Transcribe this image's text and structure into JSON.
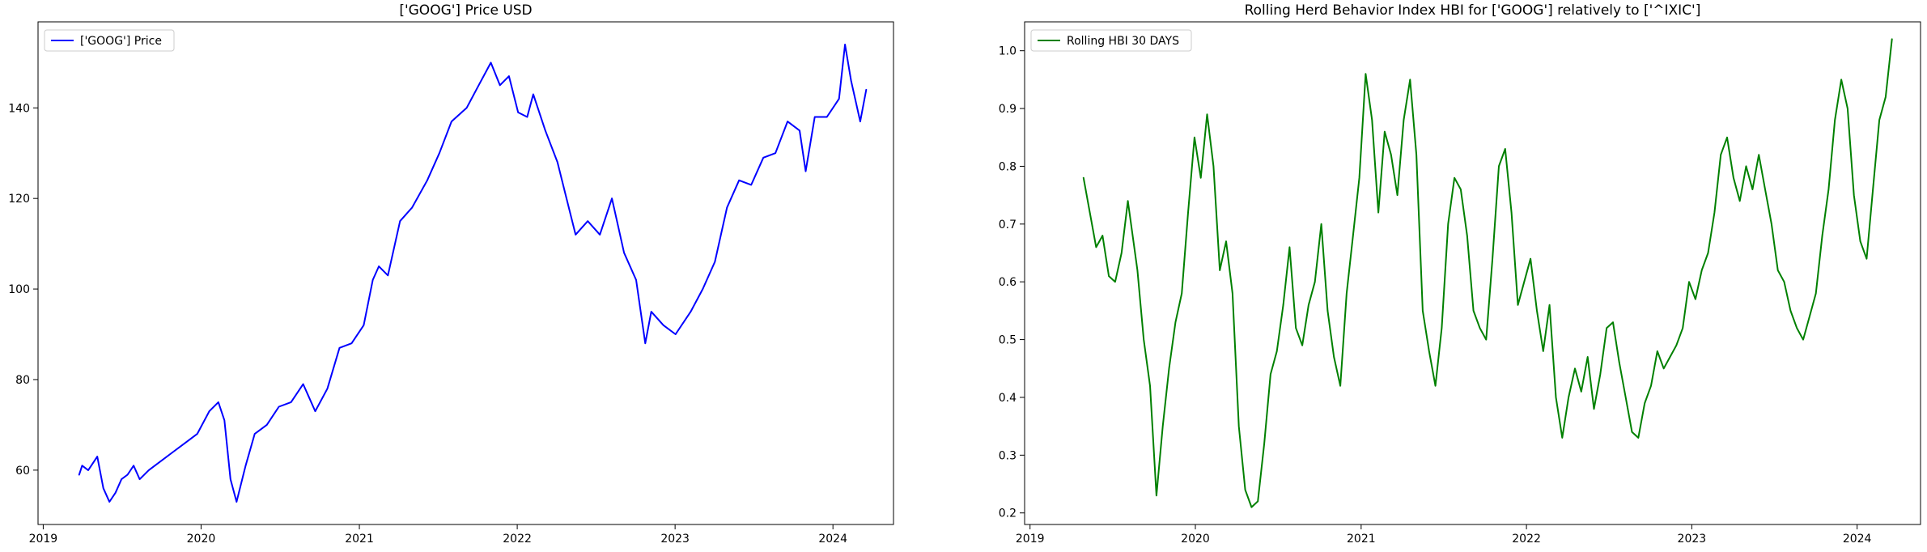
{
  "chart_data": [
    {
      "type": "line",
      "title": "['GOOG'] Price USD",
      "xlabel": "",
      "ylabel": "",
      "x_ticks": [
        "2019",
        "2020",
        "2021",
        "2022",
        "2023",
        "2024"
      ],
      "y_ticks": [
        "60",
        "80",
        "100",
        "120",
        "140"
      ],
      "xlim": [
        "2018-12-20",
        "2024-05-20"
      ],
      "ylim": [
        48,
        159
      ],
      "grid": false,
      "legend_position": "upper-left",
      "series": [
        {
          "name": "['GOOG'] Price",
          "color": "#0000ff",
          "x": [
            "2019-03-25",
            "2019-04-01",
            "2019-04-15",
            "2019-04-29",
            "2019-05-06",
            "2019-05-20",
            "2019-06-03",
            "2019-06-17",
            "2019-07-01",
            "2019-07-15",
            "2019-07-29",
            "2019-08-12",
            "2019-09-02",
            "2019-09-30",
            "2019-10-28",
            "2019-11-25",
            "2019-12-23",
            "2020-01-20",
            "2020-02-10",
            "2020-02-24",
            "2020-03-09",
            "2020-03-23",
            "2020-04-13",
            "2020-05-04",
            "2020-06-01",
            "2020-06-29",
            "2020-07-27",
            "2020-08-24",
            "2020-09-21",
            "2020-10-19",
            "2020-11-16",
            "2020-12-14",
            "2021-01-11",
            "2021-02-01",
            "2021-02-15",
            "2021-03-08",
            "2021-04-05",
            "2021-05-03",
            "2021-06-07",
            "2021-07-05",
            "2021-08-02",
            "2021-09-06",
            "2021-10-04",
            "2021-11-01",
            "2021-11-22",
            "2021-12-13",
            "2022-01-03",
            "2022-01-24",
            "2022-02-07",
            "2022-03-07",
            "2022-04-04",
            "2022-04-25",
            "2022-05-16",
            "2022-06-13",
            "2022-07-11",
            "2022-08-08",
            "2022-09-05",
            "2022-10-03",
            "2022-10-24",
            "2022-11-07",
            "2022-12-05",
            "2023-01-02",
            "2023-02-06",
            "2023-03-06",
            "2023-04-03",
            "2023-05-01",
            "2023-05-29",
            "2023-06-26",
            "2023-07-24",
            "2023-08-21",
            "2023-09-18",
            "2023-10-16",
            "2023-10-30",
            "2023-11-20",
            "2023-12-18",
            "2024-01-15",
            "2024-01-29",
            "2024-02-12",
            "2024-03-04",
            "2024-03-18"
          ],
          "y": [
            59,
            61,
            60,
            62,
            63,
            56,
            53,
            55,
            58,
            59,
            61,
            58,
            60,
            62,
            64,
            66,
            68,
            73,
            75,
            71,
            58,
            53,
            61,
            68,
            70,
            74,
            75,
            79,
            73,
            78,
            87,
            88,
            92,
            102,
            105,
            103,
            115,
            118,
            124,
            130,
            137,
            140,
            145,
            150,
            145,
            147,
            139,
            138,
            143,
            135,
            128,
            120,
            112,
            115,
            112,
            120,
            108,
            102,
            88,
            95,
            92,
            90,
            95,
            100,
            106,
            118,
            124,
            123,
            129,
            130,
            137,
            135,
            126,
            138,
            138,
            142,
            154,
            146,
            137,
            144
          ]
        }
      ]
    },
    {
      "type": "line",
      "title": "Rolling Herd Behavior Index HBI for ['GOOG'] relatively to ['^IXIC']",
      "xlabel": "",
      "ylabel": "",
      "x_ticks": [
        "2019",
        "2020",
        "2021",
        "2022",
        "2023",
        "2024"
      ],
      "y_ticks": [
        "0.2",
        "0.3",
        "0.4",
        "0.5",
        "0.6",
        "0.7",
        "0.8",
        "0.9",
        "1.0"
      ],
      "xlim": [
        "2018-12-20",
        "2024-05-20"
      ],
      "ylim": [
        0.18,
        1.05
      ],
      "grid": false,
      "legend_position": "upper-left",
      "series": [
        {
          "name": "Rolling HBI 30 DAYS",
          "color": "#008000",
          "x": [
            "2019-04-29",
            "2019-05-13",
            "2019-05-27",
            "2019-06-10",
            "2019-06-24",
            "2019-07-08",
            "2019-07-22",
            "2019-08-05",
            "2019-08-26",
            "2019-09-09",
            "2019-09-23",
            "2019-10-07",
            "2019-10-21",
            "2019-11-04",
            "2019-11-18",
            "2019-12-02",
            "2019-12-16",
            "2019-12-30",
            "2020-01-13",
            "2020-01-27",
            "2020-02-10",
            "2020-02-24",
            "2020-03-09",
            "2020-03-23",
            "2020-04-06",
            "2020-04-20",
            "2020-05-04",
            "2020-05-18",
            "2020-06-01",
            "2020-06-15",
            "2020-06-29",
            "2020-07-13",
            "2020-07-27",
            "2020-08-10",
            "2020-08-24",
            "2020-09-07",
            "2020-09-21",
            "2020-10-05",
            "2020-10-19",
            "2020-11-02",
            "2020-11-16",
            "2020-11-30",
            "2020-12-14",
            "2020-12-28",
            "2021-01-11",
            "2021-01-25",
            "2021-02-08",
            "2021-02-22",
            "2021-03-08",
            "2021-03-22",
            "2021-04-05",
            "2021-04-19",
            "2021-05-03",
            "2021-05-17",
            "2021-05-31",
            "2021-06-14",
            "2021-06-28",
            "2021-07-12",
            "2021-07-26",
            "2021-08-09",
            "2021-08-23",
            "2021-09-06",
            "2021-09-20",
            "2021-10-04",
            "2021-10-18",
            "2021-11-01",
            "2021-11-15",
            "2021-11-29",
            "2021-12-13",
            "2021-12-27",
            "2022-01-10",
            "2022-01-24",
            "2022-02-07",
            "2022-02-21",
            "2022-03-07",
            "2022-03-21",
            "2022-04-04",
            "2022-04-18",
            "2022-05-02",
            "2022-05-16",
            "2022-05-30",
            "2022-06-13",
            "2022-06-27",
            "2022-07-11",
            "2022-07-25",
            "2022-08-08",
            "2022-08-22",
            "2022-09-05",
            "2022-09-19",
            "2022-10-03",
            "2022-10-17",
            "2022-10-31",
            "2022-11-14",
            "2022-11-28",
            "2022-12-12",
            "2022-12-26",
            "2023-01-09",
            "2023-01-23",
            "2023-02-06",
            "2023-02-20",
            "2023-03-06",
            "2023-03-20",
            "2023-04-03",
            "2023-04-17",
            "2023-05-01",
            "2023-05-15",
            "2023-05-29",
            "2023-06-12",
            "2023-06-26",
            "2023-07-10",
            "2023-07-24",
            "2023-08-07",
            "2023-08-21",
            "2023-09-04",
            "2023-09-18",
            "2023-10-02",
            "2023-10-16",
            "2023-10-30",
            "2023-11-13",
            "2023-11-27",
            "2023-12-11",
            "2023-12-25",
            "2024-01-08",
            "2024-01-22",
            "2024-02-05",
            "2024-02-19",
            "2024-03-04",
            "2024-03-18"
          ],
          "y": [
            0.78,
            0.72,
            0.66,
            0.68,
            0.61,
            0.6,
            0.65,
            0.74,
            0.62,
            0.5,
            0.42,
            0.23,
            0.35,
            0.45,
            0.53,
            0.58,
            0.72,
            0.85,
            0.78,
            0.89,
            0.8,
            0.62,
            0.67,
            0.58,
            0.35,
            0.24,
            0.21,
            0.22,
            0.32,
            0.44,
            0.48,
            0.56,
            0.66,
            0.52,
            0.49,
            0.56,
            0.6,
            0.7,
            0.55,
            0.47,
            0.42,
            0.58,
            0.68,
            0.78,
            0.96,
            0.88,
            0.72,
            0.86,
            0.82,
            0.75,
            0.88,
            0.95,
            0.82,
            0.55,
            0.48,
            0.42,
            0.52,
            0.7,
            0.78,
            0.76,
            0.68,
            0.55,
            0.52,
            0.5,
            0.64,
            0.8,
            0.83,
            0.72,
            0.56,
            0.6,
            0.64,
            0.55,
            0.48,
            0.56,
            0.4,
            0.33,
            0.4,
            0.45,
            0.41,
            0.47,
            0.38,
            0.44,
            0.52,
            0.53,
            0.46,
            0.4,
            0.34,
            0.33,
            0.39,
            0.42,
            0.48,
            0.45,
            0.47,
            0.49,
            0.52,
            0.6,
            0.57,
            0.62,
            0.65,
            0.72,
            0.82,
            0.85,
            0.78,
            0.74,
            0.8,
            0.76,
            0.82,
            0.76,
            0.7,
            0.62,
            0.6,
            0.55,
            0.52,
            0.5,
            0.54,
            0.58,
            0.68,
            0.76,
            0.88,
            0.95,
            0.9,
            0.75,
            0.67,
            0.64,
            0.76,
            0.88,
            0.92,
            1.02
          ]
        }
      ]
    }
  ]
}
